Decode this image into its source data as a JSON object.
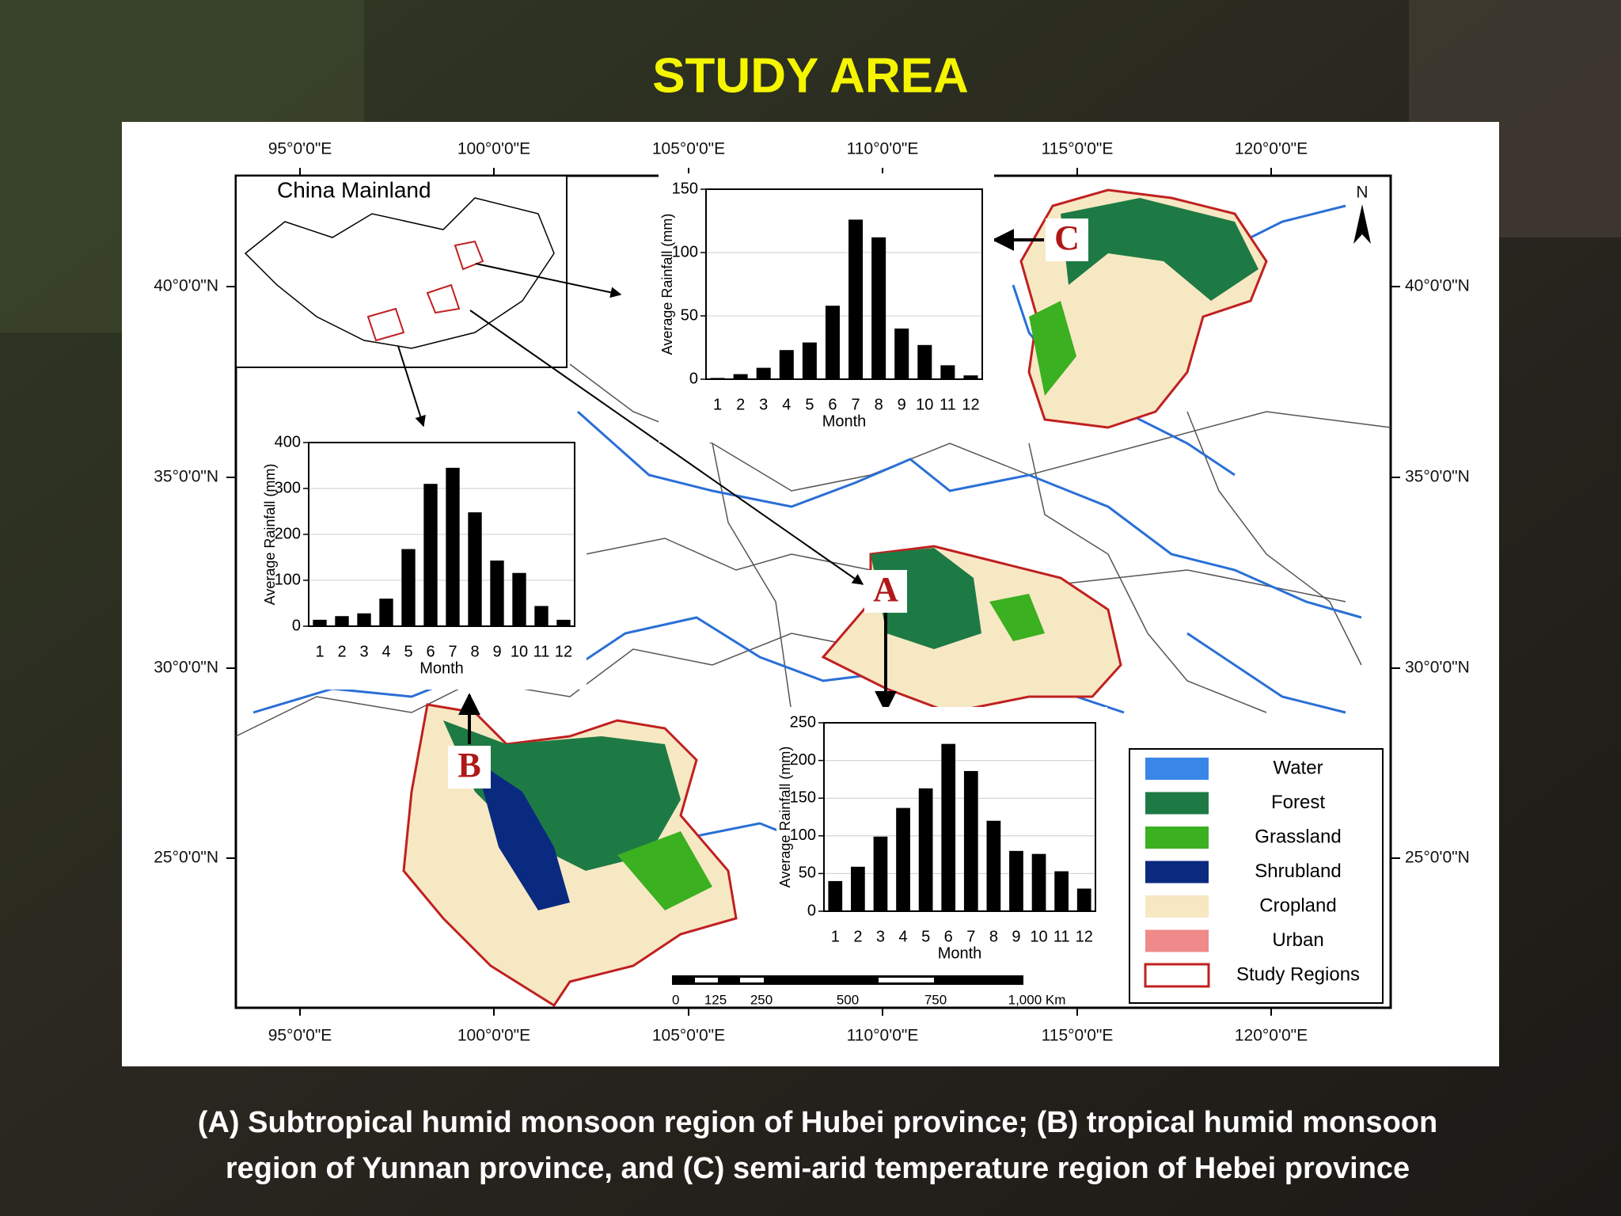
{
  "title": "STUDY AREA",
  "caption": [
    "(A) Subtropical humid monsoon region of Hubei province; (B) tropical humid monsoon",
    "region of Yunnan province, and (C) semi-arid temperature region of Hebei province"
  ],
  "map": {
    "lon_labels": [
      "95°0'0\"E",
      "100°0'0\"E",
      "105°0'0\"E",
      "110°0'0\"E",
      "115°0'0\"E",
      "120°0'0\"E"
    ],
    "lat_labels": [
      "40°0'0\"N",
      "35°0'0\"N",
      "30°0'0\"N",
      "25°0'0\"N"
    ],
    "inset_title": "China Mainland",
    "region_labels": [
      "A",
      "B",
      "C"
    ],
    "north": "N",
    "legend": [
      {
        "label": "Water",
        "color": "#3a86e8"
      },
      {
        "label": "Forest",
        "color": "#1e7a45"
      },
      {
        "label": "Grassland",
        "color": "#3bb020"
      },
      {
        "label": "Shrubland",
        "color": "#0a2a80"
      },
      {
        "label": "Cropland",
        "color": "#f7e8c4"
      },
      {
        "label": "Urban",
        "color": "#f08a8a"
      },
      {
        "label": "Study Regions",
        "color": "#c02020"
      }
    ],
    "scale_labels": [
      "0",
      "125",
      "250",
      "500",
      "750",
      "1,000 Km"
    ]
  },
  "chart_data": [
    {
      "type": "bar",
      "x_label": "Month",
      "y_label": "Average Rainfall (mm)",
      "categories": [
        "1",
        "2",
        "3",
        "4",
        "5",
        "6",
        "7",
        "8",
        "9",
        "10",
        "11",
        "12"
      ],
      "values": [
        1,
        4,
        9,
        23,
        29,
        58,
        126,
        112,
        40,
        27,
        11,
        3
      ],
      "color": "#000000",
      "ylim": [
        0,
        150
      ],
      "yticks": [
        0,
        50,
        100,
        150
      ],
      "grid": true
    },
    {
      "type": "bar",
      "x_label": "Month",
      "y_label": "Average Rainfall (mm)",
      "categories": [
        "1",
        "2",
        "3",
        "4",
        "5",
        "6",
        "7",
        "8",
        "9",
        "10",
        "11",
        "12"
      ],
      "values": [
        14,
        22,
        28,
        60,
        168,
        310,
        345,
        248,
        143,
        116,
        44,
        14
      ],
      "color": "#000000",
      "ylim": [
        0,
        400
      ],
      "yticks": [
        0,
        100,
        200,
        300,
        400
      ],
      "grid": true
    },
    {
      "type": "bar",
      "x_label": "Month",
      "y_label": "Average Rainfall (mm)",
      "categories": [
        "1",
        "2",
        "3",
        "4",
        "5",
        "6",
        "7",
        "8",
        "9",
        "10",
        "11",
        "12"
      ],
      "values": [
        40,
        59,
        99,
        137,
        163,
        222,
        186,
        120,
        80,
        76,
        53,
        30
      ],
      "color": "#000000",
      "ylim": [
        0,
        250
      ],
      "yticks": [
        0,
        50,
        100,
        150,
        200,
        250
      ],
      "grid": true
    }
  ]
}
